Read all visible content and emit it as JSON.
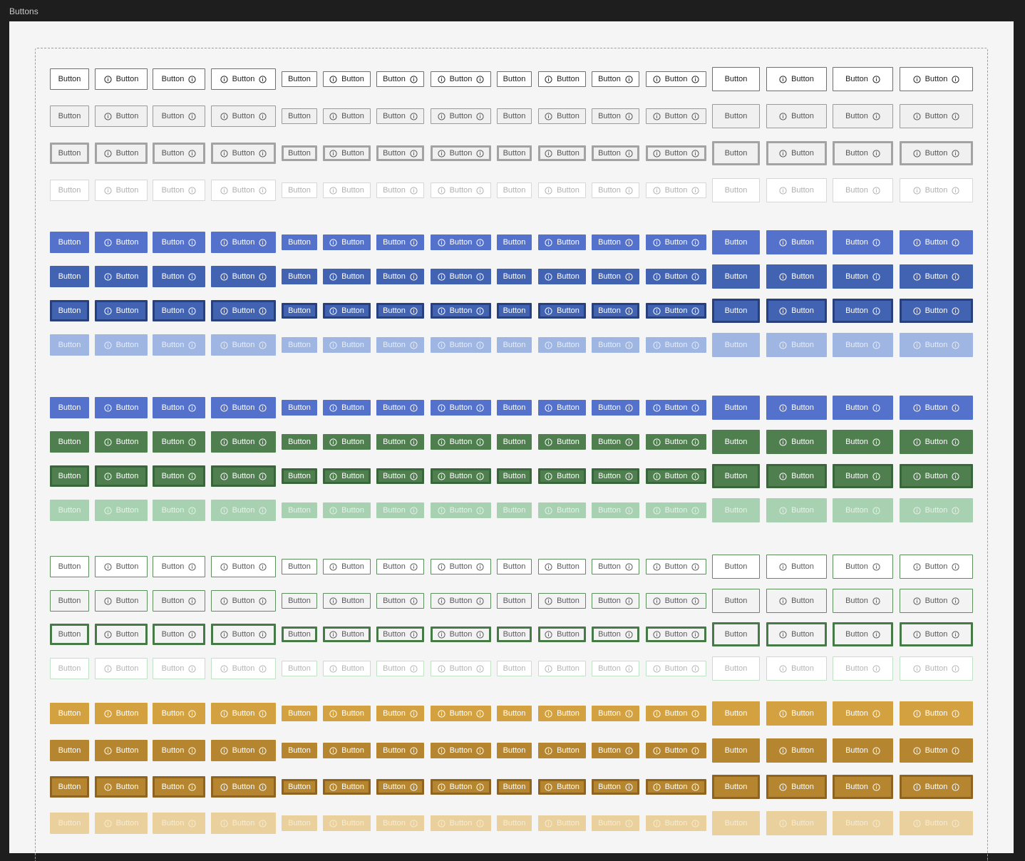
{
  "frame": {
    "title": "Buttons"
  },
  "button": {
    "label": "Button",
    "icon": "info-circle-icon"
  },
  "columns": [
    "text",
    "icon-left",
    "icon-right",
    "icon-both",
    "text",
    "icon-left",
    "icon-right",
    "icon-both",
    "text",
    "icon-left",
    "icon-right",
    "icon-both",
    "text",
    "icon-left",
    "icon-right",
    "icon-both"
  ],
  "sizes": [
    "medium",
    "small",
    "compact",
    "large"
  ],
  "groups": [
    {
      "name": "outline-neutral",
      "rows": [
        {
          "state": "default",
          "bg": "#ffffff",
          "border": "#6f6f6f",
          "bw": 1,
          "color": "#1f1f1f"
        },
        {
          "state": "hover",
          "bg": "#f0f0f0",
          "border": "#9a9a9a",
          "bw": 1,
          "color": "#555555"
        },
        {
          "state": "pressed",
          "bg": "#f0f0f0",
          "border": "#a3a3a3",
          "bw": 3,
          "color": "#555555"
        },
        {
          "state": "disabled",
          "bg": "#ffffff",
          "border": "#d7d7d7",
          "bw": 1,
          "color": "#b0b0b0"
        }
      ]
    },
    {
      "name": "solid-blue",
      "rows": [
        {
          "state": "default",
          "bg": "#5472cc",
          "border": "#5472cc",
          "bw": 0,
          "color": "#ffffff"
        },
        {
          "state": "hover",
          "bg": "#4262b2",
          "border": "#4262b2",
          "bw": 0,
          "color": "#ffffff"
        },
        {
          "state": "pressed",
          "bg": "#4262b2",
          "border": "#28407e",
          "bw": 3,
          "color": "#ffffff"
        },
        {
          "state": "disabled",
          "bg": "#9fb6e3",
          "border": "#9fb6e3",
          "bw": 0,
          "color": "#e6edf9"
        }
      ]
    },
    {
      "name": "solid-green",
      "rows": [
        {
          "state": "default",
          "bg": "#5472cc",
          "border": "#5472cc",
          "bw": 0,
          "color": "#ffffff"
        },
        {
          "state": "hover",
          "bg": "#4f7f4e",
          "border": "#4f7f4e",
          "bw": 0,
          "color": "#ffffff"
        },
        {
          "state": "pressed",
          "bg": "#4f7f4e",
          "border": "#39663a",
          "bw": 3,
          "color": "#ffffff"
        },
        {
          "state": "disabled",
          "bg": "#a7d1b1",
          "border": "#a7d1b1",
          "bw": 0,
          "color": "#e5f3e8"
        }
      ]
    },
    {
      "name": "outline-green",
      "rows": [
        {
          "state": "default",
          "bg": "#ffffff",
          "border": "#5d8f5d",
          "bw": 1,
          "color": "#5a5a5a"
        },
        {
          "state": "hover",
          "bg": "#f3f3f3",
          "border": "#5d8f5d",
          "bw": 1,
          "color": "#5a5a5a"
        },
        {
          "state": "pressed",
          "bg": "#f3f3f3",
          "border": "#467a46",
          "bw": 3,
          "color": "#5a5a5a"
        },
        {
          "state": "disabled",
          "bg": "#ffffff",
          "border": "#bfe1c6",
          "bw": 1,
          "color": "#b5b5b5"
        }
      ]
    },
    {
      "name": "solid-gold",
      "rows": [
        {
          "state": "default",
          "bg": "#d4a140",
          "border": "#d4a140",
          "bw": 0,
          "color": "#ffffff"
        },
        {
          "state": "hover",
          "bg": "#b5852f",
          "border": "#b5852f",
          "bw": 0,
          "color": "#ffffff"
        },
        {
          "state": "pressed",
          "bg": "#b5852f",
          "border": "#8f6420",
          "bw": 3,
          "color": "#ffffff"
        },
        {
          "state": "disabled",
          "bg": "#e9d09c",
          "border": "#e9d09c",
          "bw": 0,
          "color": "#f6ecd6"
        }
      ]
    }
  ]
}
